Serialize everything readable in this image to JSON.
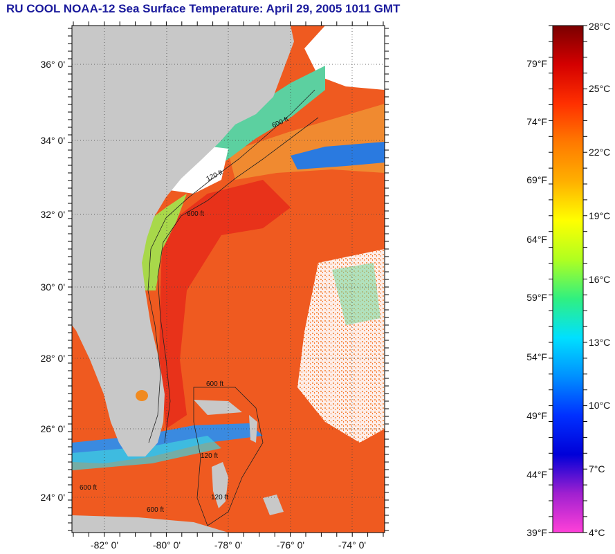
{
  "title": "RU COOL  NOAA-12  Sea Surface Temperature:  April 29, 2005 1011 GMT",
  "map": {
    "lat_labels": [
      "36° 0'",
      "34° 0'",
      "32° 0'",
      "30° 0'",
      "28° 0'",
      "26° 0'",
      "24° 0'"
    ],
    "lon_labels": [
      "-82° 0'",
      "-80° 0'",
      "-78° 0'",
      "-76° 0'",
      "-74° 0'"
    ],
    "contour_labels": [
      "600 ft",
      "120 ft",
      "600 ft",
      "120 ft",
      "600 ft",
      "600 ft",
      "120 ft",
      "600 ft"
    ],
    "colors": {
      "land": "#c8c8c8",
      "cloud": "#ffffff",
      "warm": "#f24a1a",
      "gulf_stream": "#e8321a",
      "shelf": "#9ad24a",
      "cold": "#3aa0e0"
    }
  },
  "colorbar": {
    "fahrenheit_labels": [
      "79°F",
      "74°F",
      "69°F",
      "64°F",
      "59°F",
      "54°F",
      "49°F",
      "44°F",
      "39°F"
    ],
    "celsius_labels": [
      "28°C",
      "25°C",
      "22°C",
      "19°C",
      "16°C",
      "13°C",
      "10°C",
      "7°C",
      "4°C"
    ],
    "gradient_stops": [
      "#7a0000",
      "#d40000",
      "#ff3000",
      "#ff7a00",
      "#ffb000",
      "#ffff00",
      "#b0ff20",
      "#30f080",
      "#00e0ff",
      "#0090ff",
      "#0030ff",
      "#0000d8",
      "#a020d0",
      "#ff40d8"
    ]
  }
}
